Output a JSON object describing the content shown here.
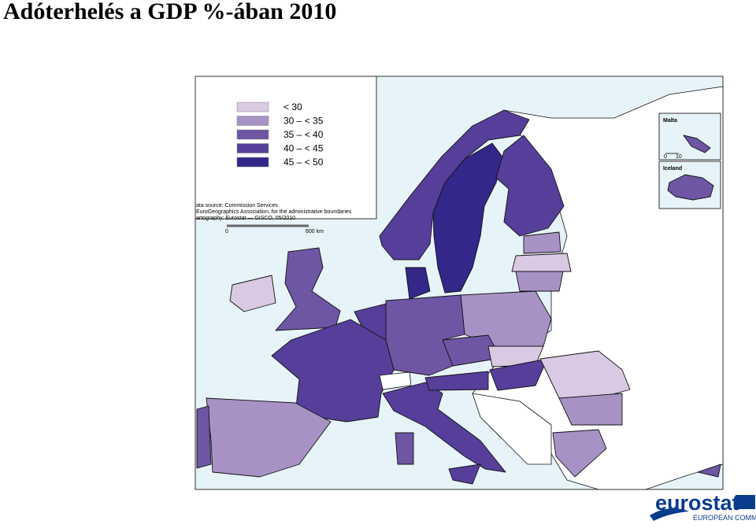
{
  "title": "Adóterhelés a GDP %-ában 2010",
  "legend": {
    "items": [
      {
        "label": "< 30",
        "color": "#d9c9e3"
      },
      {
        "label": "30 – < 35",
        "color": "#a892c5"
      },
      {
        "label": "35 – < 40",
        "color": "#6e56a4"
      },
      {
        "label": "40 – < 45",
        "color": "#563f9b"
      },
      {
        "label": "45 – < 50",
        "color": "#33278a"
      }
    ]
  },
  "source": [
    "ata source: Commission Services",
    "EuroGeographics Association, for the administrative boundaries",
    "artography: Eurostat — GISCO, 05/2010"
  ],
  "scale_bar": {
    "start": "0",
    "end": "600 km"
  },
  "insets": [
    {
      "label": "Malta",
      "scale_start": "0",
      "scale_end": "10"
    },
    {
      "label": "Iceland"
    }
  ],
  "logo": {
    "name": "eurostat",
    "subtitle": "EUROPEAN COMMISSION"
  }
}
